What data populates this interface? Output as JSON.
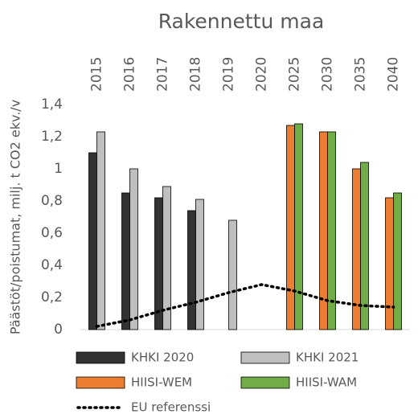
{
  "chart_data": {
    "type": "bar",
    "title": "Rakennettu maa",
    "y_label": "Päästöt/poistumat, milj. t CO2 ekv./v",
    "categories": [
      "2015",
      "2016",
      "2017",
      "2018",
      "2019",
      "2020",
      "2025",
      "2030",
      "2035",
      "2040"
    ],
    "series": [
      {
        "name": "KHKI 2020",
        "color": "#333333",
        "values": [
          1.1,
          0.85,
          0.82,
          0.74,
          null,
          null,
          null,
          null,
          null,
          null
        ]
      },
      {
        "name": "KHKI 2021",
        "color": "#bfbfbf",
        "values": [
          1.23,
          1.0,
          0.89,
          0.81,
          0.68,
          null,
          null,
          null,
          null,
          null
        ]
      },
      {
        "name": "HIISI-WEM",
        "color": "#ed7d31",
        "values": [
          null,
          null,
          null,
          null,
          null,
          null,
          1.27,
          1.23,
          1.0,
          0.82
        ]
      },
      {
        "name": "HIISI-WAM",
        "color": "#70ad47",
        "values": [
          null,
          null,
          null,
          null,
          null,
          null,
          1.28,
          1.23,
          1.04,
          0.85
        ]
      },
      {
        "name": "EU referenssi",
        "type": "line",
        "color": "#000000",
        "values": [
          0.02,
          0.06,
          0.12,
          0.17,
          0.23,
          0.28,
          0.24,
          0.18,
          0.15,
          0.14
        ]
      }
    ],
    "ylim": [
      0,
      1.4
    ],
    "yticks": [
      0,
      {
        "value": 0.2,
        "label": "0,2"
      },
      {
        "value": 0.4,
        "label": "0,4"
      },
      {
        "value": 0.6,
        "label": "0,6"
      },
      {
        "value": 0.8,
        "label": "0,8"
      },
      1,
      {
        "value": 1.2,
        "label": "1,2"
      },
      {
        "value": 1.4,
        "label": "1,4"
      }
    ]
  }
}
